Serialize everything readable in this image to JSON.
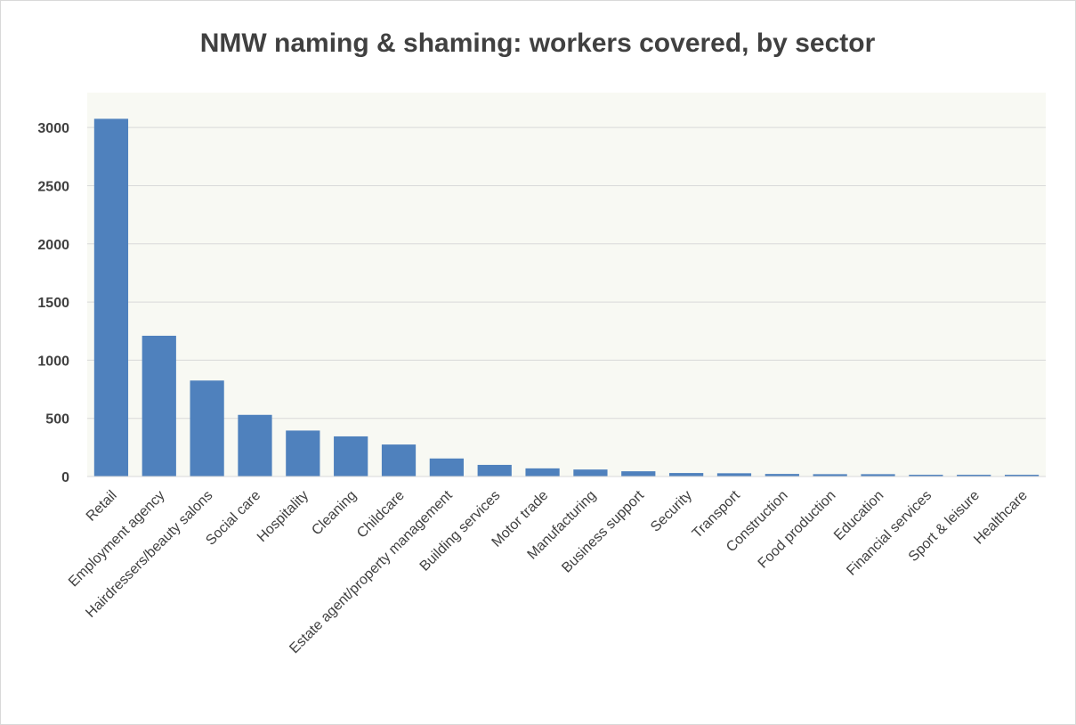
{
  "colors": {
    "bar": "#4f81bd",
    "plot_background": "#f8f9f3",
    "gridline": "#d9d9d9",
    "text": "#404040"
  },
  "chart_data": {
    "type": "bar",
    "title": "NMW naming & shaming: workers covered, by sector",
    "xlabel": "",
    "ylabel": "",
    "ylim": [
      0,
      3300
    ],
    "yticks": [
      0,
      500,
      1000,
      1500,
      2000,
      2500,
      3000
    ],
    "grid": true,
    "legend": "none",
    "categories": [
      "Retail",
      "Employment agency",
      "Hairdressers/beauty salons",
      "Social care",
      "Hospitality",
      "Cleaning",
      "Childcare",
      "Estate agent/property management",
      "Building services",
      "Motor trade",
      "Manufacturing",
      "Business support",
      "Security",
      "Transport",
      "Construction",
      "Food production",
      "Education",
      "Financial services",
      "Sport & leisure",
      "Healthcare"
    ],
    "values": [
      3075,
      1210,
      825,
      530,
      395,
      345,
      275,
      155,
      100,
      70,
      60,
      45,
      30,
      28,
      22,
      20,
      20,
      15,
      15,
      15
    ]
  }
}
